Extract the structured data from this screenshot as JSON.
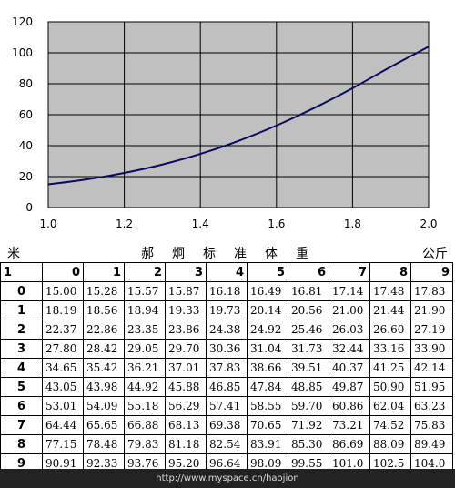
{
  "chart_data": {
    "type": "line",
    "title": "",
    "xlabel": "",
    "ylabel": "",
    "xlim": [
      1.0,
      2.0
    ],
    "ylim": [
      0,
      120
    ],
    "x_ticks": [
      "1.0",
      "1.2",
      "1.4",
      "1.6",
      "1.8",
      "2.0"
    ],
    "y_ticks": [
      "0",
      "20",
      "40",
      "60",
      "80",
      "100",
      "120"
    ],
    "grid": true,
    "plot_background": "#c0c0c0",
    "line_color": "#0a0a60",
    "series": [
      {
        "x": [
          1.0,
          1.1,
          1.2,
          1.3,
          1.4,
          1.5,
          1.6,
          1.7,
          1.8,
          1.9,
          2.0
        ],
        "values": [
          15.0,
          18.19,
          22.37,
          27.8,
          34.65,
          43.05,
          53.01,
          64.44,
          77.15,
          90.91,
          104.0
        ]
      }
    ]
  },
  "table": {
    "unit_left": "米",
    "title": "郝炯标准体重",
    "unit_right": "公斤",
    "corner": "1",
    "col_headers": [
      "0",
      "1",
      "2",
      "3",
      "4",
      "5",
      "6",
      "7",
      "8",
      "9"
    ],
    "rows": [
      {
        "label": "0",
        "cells": [
          "15.00",
          "15.28",
          "15.57",
          "15.87",
          "16.18",
          "16.49",
          "16.81",
          "17.14",
          "17.48",
          "17.83"
        ]
      },
      {
        "label": "1",
        "cells": [
          "18.19",
          "18.56",
          "18.94",
          "19.33",
          "19.73",
          "20.14",
          "20.56",
          "21.00",
          "21.44",
          "21.90"
        ]
      },
      {
        "label": "2",
        "cells": [
          "22.37",
          "22.86",
          "23.35",
          "23.86",
          "24.38",
          "24.92",
          "25.46",
          "26.03",
          "26.60",
          "27.19"
        ]
      },
      {
        "label": "3",
        "cells": [
          "27.80",
          "28.42",
          "29.05",
          "29.70",
          "30.36",
          "31.04",
          "31.73",
          "32.44",
          "33.16",
          "33.90"
        ]
      },
      {
        "label": "4",
        "cells": [
          "34.65",
          "35.42",
          "36.21",
          "37.01",
          "37.83",
          "38.66",
          "39.51",
          "40.37",
          "41.25",
          "42.14"
        ]
      },
      {
        "label": "5",
        "cells": [
          "43.05",
          "43.98",
          "44.92",
          "45.88",
          "46.85",
          "47.84",
          "48.85",
          "49.87",
          "50.90",
          "51.95"
        ]
      },
      {
        "label": "6",
        "cells": [
          "53.01",
          "54.09",
          "55.18",
          "56.29",
          "57.41",
          "58.55",
          "59.70",
          "60.86",
          "62.04",
          "63.23"
        ]
      },
      {
        "label": "7",
        "cells": [
          "64.44",
          "65.65",
          "66.88",
          "68.13",
          "69.38",
          "70.65",
          "71.92",
          "73.21",
          "74.52",
          "75.83"
        ]
      },
      {
        "label": "8",
        "cells": [
          "77.15",
          "78.48",
          "79.83",
          "81.18",
          "82.54",
          "83.91",
          "85.30",
          "86.69",
          "88.09",
          "89.49"
        ]
      },
      {
        "label": "9",
        "cells": [
          "90.91",
          "92.33",
          "93.76",
          "95.20",
          "96.64",
          "98.09",
          "99.55",
          "101.0",
          "102.5",
          "104.0"
        ]
      }
    ]
  },
  "footer": {
    "watermark": "http://www.myspace.cn/haojion"
  }
}
